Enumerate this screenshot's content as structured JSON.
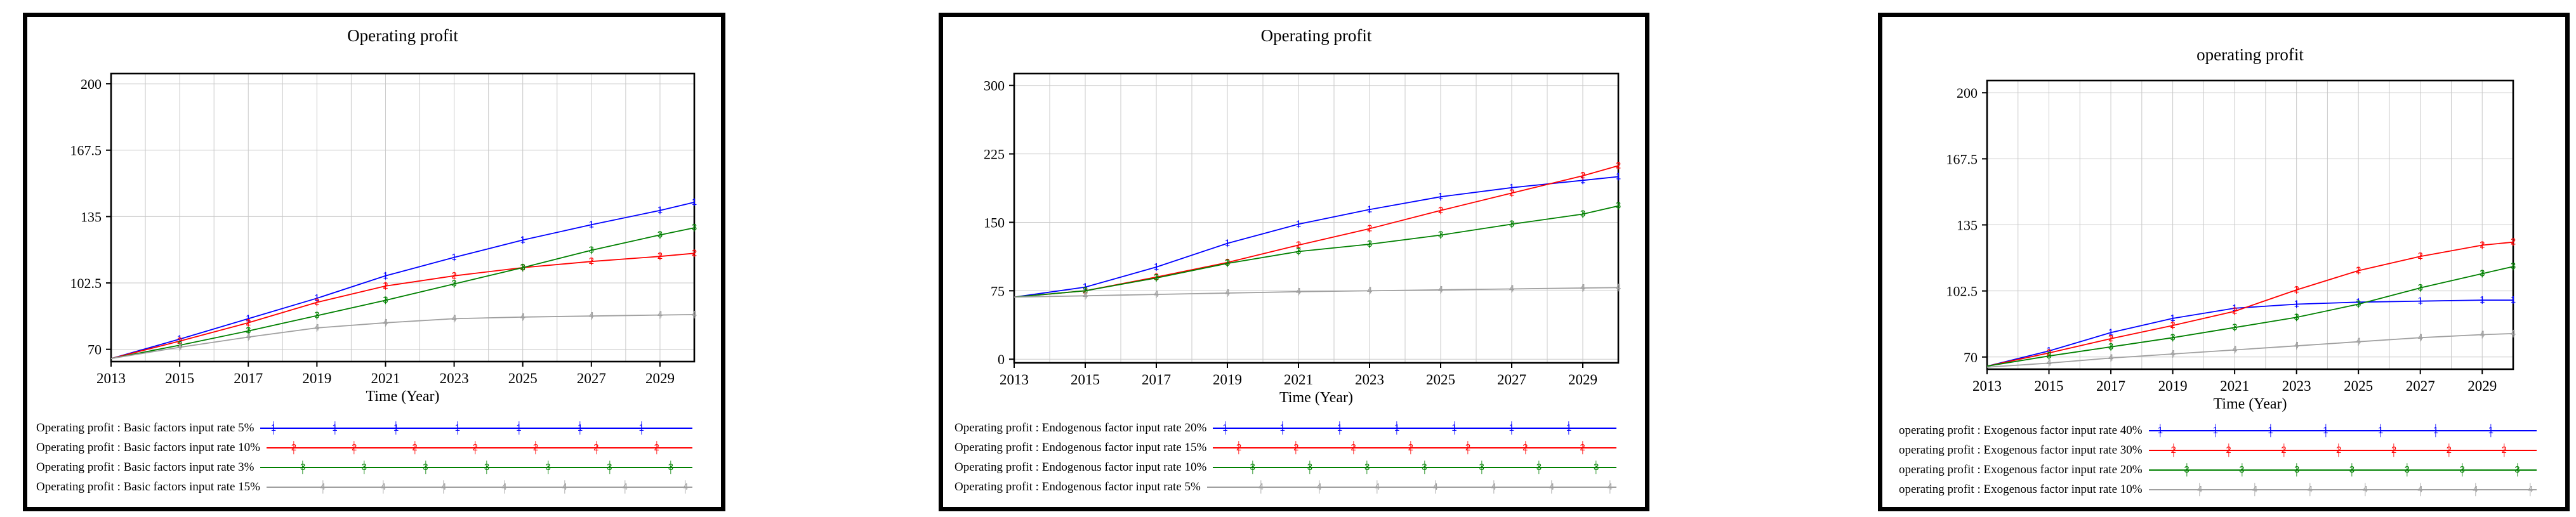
{
  "page": {
    "background": "#ffffff"
  },
  "colors": {
    "series1": "#0000ff",
    "series2": "#ff0000",
    "series3": "#008000",
    "series4": "#a0a0a0",
    "grid": "#c9c9c9",
    "frame": "#000000"
  },
  "chart_data": [
    {
      "type": "line",
      "title": "Operating profit",
      "xlabel": "Time (Year)",
      "x_range": [
        2013,
        2030
      ],
      "x_ticks": [
        2013,
        2015,
        2017,
        2019,
        2021,
        2023,
        2025,
        2027,
        2029
      ],
      "x": [
        2013,
        2015,
        2017,
        2019,
        2021,
        2023,
        2025,
        2027,
        2029,
        2030
      ],
      "y_ticks": [
        70,
        102.5,
        135,
        167.5,
        200
      ],
      "y_tick_labels": [
        "70",
        "102.5",
        "135",
        "167.5",
        "200"
      ],
      "ylim": [
        64,
        205
      ],
      "grid": true,
      "legend_position": "bottom-left",
      "series": [
        {
          "name": "Operating profit : Basic factors input rate 5%",
          "marker": "1",
          "color": "#0000ff",
          "values": [
            65.5,
            75,
            85,
            95,
            106,
            115,
            123.5,
            131,
            138,
            142
          ]
        },
        {
          "name": "Operating profit : Basic factors input rate 10%",
          "marker": "2",
          "color": "#ff0000",
          "values": [
            65.5,
            74,
            83,
            93,
            101,
            106,
            110,
            113,
            115.5,
            117
          ]
        },
        {
          "name": "Operating profit : Basic factors input rate 3%",
          "marker": "3",
          "color": "#008000",
          "values": [
            65.5,
            72,
            79,
            86.5,
            94,
            102,
            110,
            118.5,
            126,
            129.5
          ]
        },
        {
          "name": "Operating profit : Basic factors input rate 15%",
          "marker": "4",
          "color": "#a0a0a0",
          "values": [
            65.5,
            71,
            76,
            80.5,
            83,
            85,
            85.8,
            86.3,
            86.8,
            87
          ]
        }
      ]
    },
    {
      "type": "line",
      "title": "Operating profit",
      "xlabel": "Time (Year)",
      "x_range": [
        2013,
        2030
      ],
      "x_ticks": [
        2013,
        2015,
        2017,
        2019,
        2021,
        2023,
        2025,
        2027,
        2029
      ],
      "x": [
        2013,
        2015,
        2017,
        2019,
        2021,
        2023,
        2025,
        2027,
        2029,
        2030
      ],
      "y_ticks": [
        0,
        75,
        150,
        225,
        300
      ],
      "y_tick_labels": [
        "0",
        "75",
        "150",
        "225",
        "300"
      ],
      "ylim": [
        -4,
        313
      ],
      "grid": true,
      "legend_position": "bottom-left",
      "series": [
        {
          "name": "Operating profit : Endogenous factor input rate 20%",
          "marker": "1",
          "color": "#0000ff",
          "values": [
            68,
            79,
            101,
            127,
            148,
            164,
            178,
            188,
            196,
            200
          ]
        },
        {
          "name": "Operating profit : Endogenous factor input rate 15%",
          "marker": "2",
          "color": "#ff0000",
          "values": [
            68,
            75,
            90,
            106,
            125,
            143,
            163,
            182,
            201,
            212
          ]
        },
        {
          "name": "Operating profit : Endogenous factor input rate 10%",
          "marker": "3",
          "color": "#008000",
          "values": [
            68,
            75,
            89,
            105,
            118,
            126,
            136,
            148,
            159,
            168
          ]
        },
        {
          "name": "Operating profit : Endogenous factor input rate 5%",
          "marker": "4",
          "color": "#a0a0a0",
          "values": [
            68,
            69.5,
            71,
            72.5,
            74,
            75,
            76,
            77,
            78,
            78.5
          ]
        }
      ]
    },
    {
      "type": "line",
      "title": "operating profit",
      "xlabel": "Time (Year)",
      "x_range": [
        2013,
        2030
      ],
      "x_ticks": [
        2013,
        2015,
        2017,
        2019,
        2021,
        2023,
        2025,
        2027,
        2029
      ],
      "x": [
        2013,
        2015,
        2017,
        2019,
        2021,
        2023,
        2025,
        2027,
        2029,
        2030
      ],
      "y_ticks": [
        70,
        102.5,
        135,
        167.5,
        200
      ],
      "y_tick_labels": [
        "70",
        "102.5",
        "135",
        "167.5",
        "200"
      ],
      "ylim": [
        64,
        206
      ],
      "grid": true,
      "legend_position": "bottom-left",
      "series": [
        {
          "name": "operating profit : Exogenous factor input rate 40%",
          "marker": "1",
          "color": "#0000ff",
          "values": [
            65.5,
            73,
            82,
            89,
            94,
            96,
            97,
            97.5,
            98,
            98
          ]
        },
        {
          "name": "operating profit : Exogenous factor input rate 30%",
          "marker": "2",
          "color": "#ff0000",
          "values": [
            65.5,
            72,
            79,
            85.5,
            92.5,
            103,
            112.5,
            119.5,
            125,
            126.5
          ]
        },
        {
          "name": "operating profit : Exogenous factor input rate 20%",
          "marker": "3",
          "color": "#008000",
          "values": [
            65.5,
            70.5,
            75,
            79.5,
            84.5,
            89.5,
            96,
            104,
            111,
            114.5
          ]
        },
        {
          "name": "operating profit : Exogenous factor input rate 10%",
          "marker": "4",
          "color": "#a0a0a0",
          "values": [
            65,
            67,
            69.5,
            71.5,
            73.5,
            75.5,
            77.5,
            79.5,
            81,
            81.5
          ]
        }
      ]
    }
  ]
}
